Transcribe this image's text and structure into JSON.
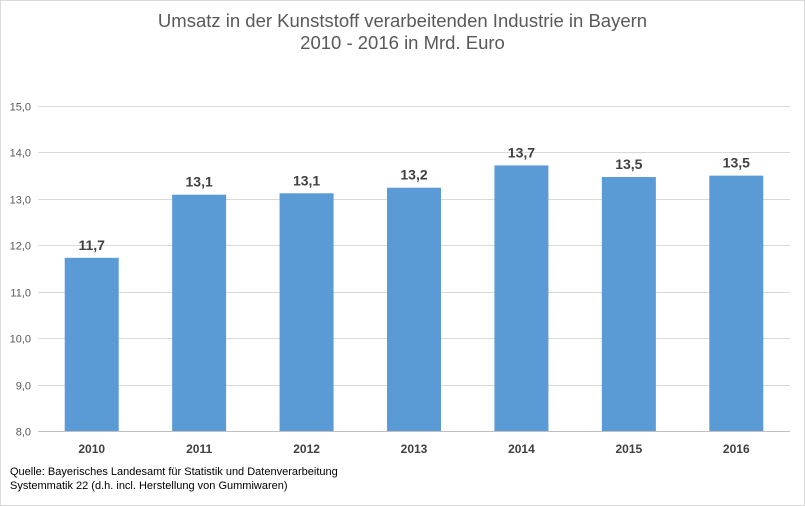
{
  "chart_data": {
    "type": "bar",
    "title_line1": "Umsatz in der Kunststoff verarbeitenden Industrie in Bayern",
    "title_line2": "2010 - 2016 in Mrd. Euro",
    "categories": [
      "2010",
      "2011",
      "2012",
      "2013",
      "2014",
      "2015",
      "2016"
    ],
    "values": [
      11.73,
      13.09,
      13.12,
      13.24,
      13.72,
      13.47,
      13.5
    ],
    "data_labels": [
      "11,7",
      "13,1",
      "13,1",
      "13,2",
      "13,7",
      "13,5",
      "13,5"
    ],
    "ylim": [
      8,
      15
    ],
    "yticks": [
      8,
      9,
      10,
      11,
      12,
      13,
      14,
      15
    ],
    "ytick_labels": [
      "8,0",
      "9,0",
      "10,0",
      "11,0",
      "12,0",
      "13,0",
      "14,0",
      "15,0"
    ],
    "grid": true,
    "bar_color": "#5b9bd5",
    "grid_color": "#d9d9d9",
    "xlabel": "",
    "ylabel": ""
  },
  "source": {
    "line1": "Quelle:  Bayerisches Landesamt für Statistik und Datenverarbeitung",
    "line2": "Systemmatik 22 (d.h. incl. Herstellung von Gummiwaren)"
  }
}
